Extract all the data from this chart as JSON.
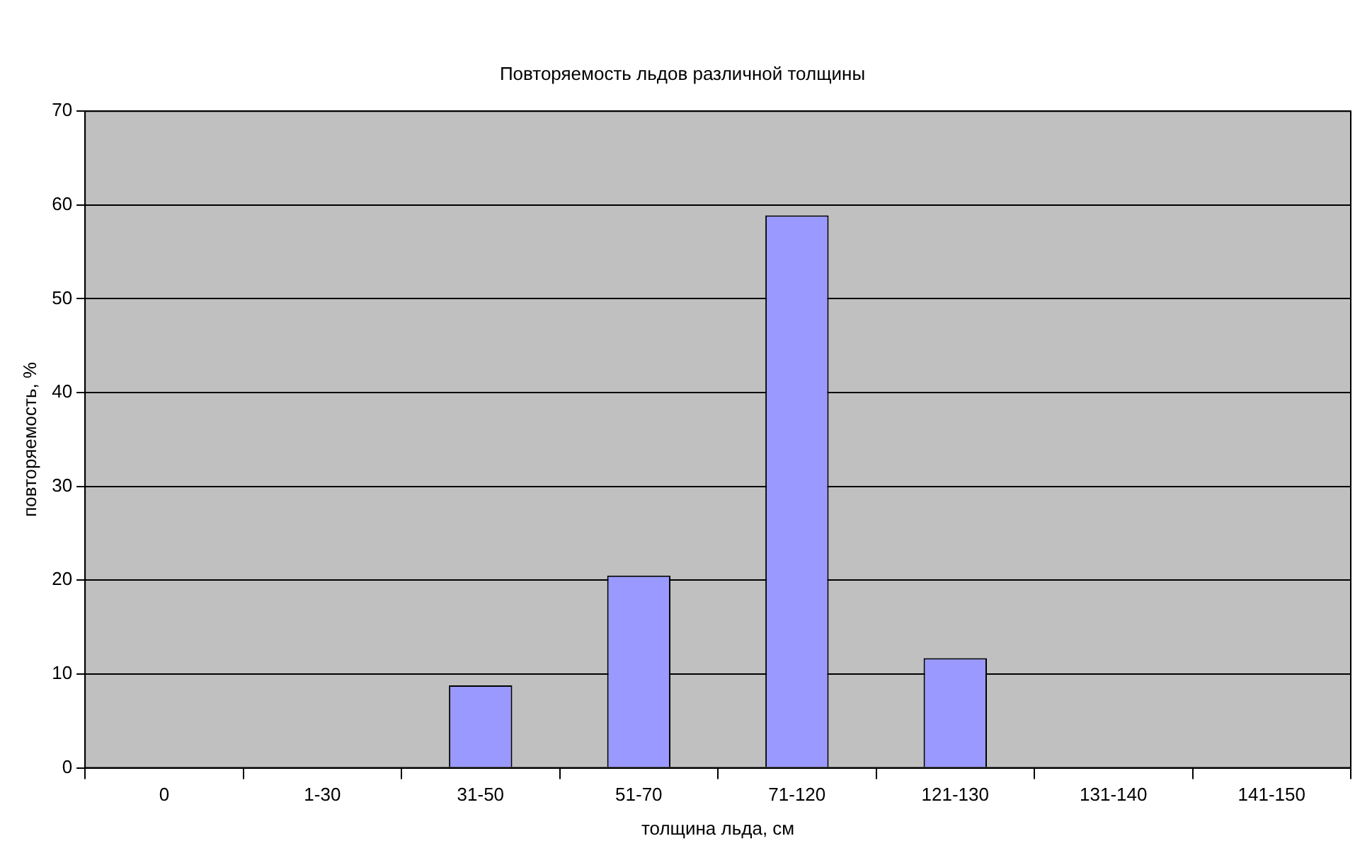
{
  "chart_data": {
    "type": "bar",
    "title": "Повторяемость льдов различной толщины",
    "xlabel": "толщина льда, см",
    "ylabel": "повторяемость, %",
    "categories": [
      "0",
      "1-30",
      "31-50",
      "51-70",
      "71-120",
      "121-130",
      "131-140",
      "141-150"
    ],
    "values": [
      0,
      0,
      8.8,
      20.5,
      58.9,
      11.7,
      0,
      0
    ],
    "color": "#9999ff",
    "ylim": [
      0,
      70
    ],
    "yticks": [
      0,
      10,
      20,
      30,
      40,
      50,
      60,
      70
    ],
    "grid": "y",
    "legend": false
  }
}
